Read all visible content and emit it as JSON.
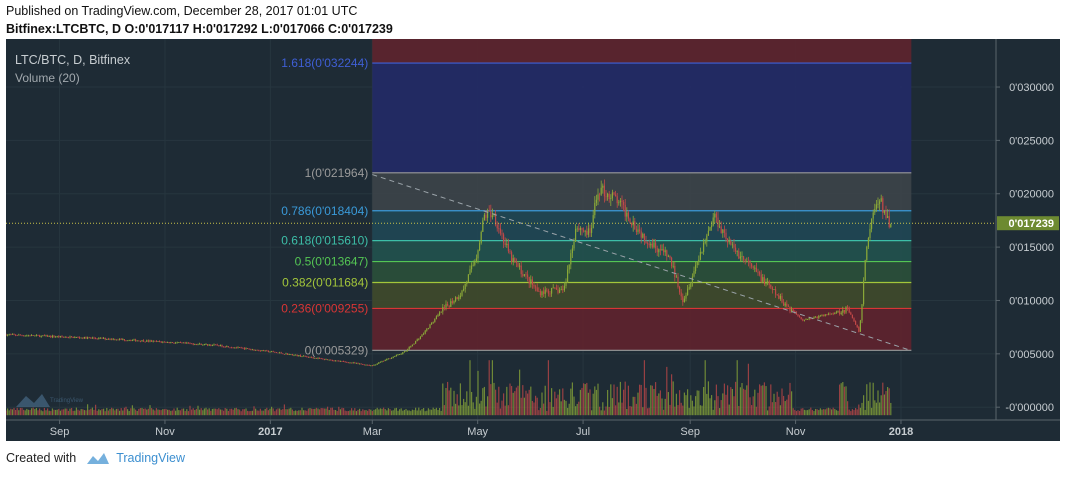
{
  "header": {
    "published": "Published on TradingView.com, December 28, 2017 01:01 UTC",
    "ohlc": "Bitfinex:LTCBTC, D  O:0'017117 H:0'017292 L:0'017066 C:0'017239"
  },
  "footer": {
    "created_with": "Created with",
    "brand": "TradingView"
  },
  "colors": {
    "background": "#1e2b35",
    "candle_up": "#8aa838",
    "candle_down": "#c24848",
    "last_price_badge": "#6d8a31",
    "fib_zone_top": "#232a66",
    "fib_zone_bottom": "#5e232e"
  },
  "chart_data": {
    "type": "candlestick",
    "symbol_label": "LTC/BTC, D, Bitfinex",
    "volume_label": "Volume (20)",
    "x_ticks": [
      "Sep",
      "Nov",
      "2017",
      "Mar",
      "May",
      "Jul",
      "Sep",
      "Nov",
      "2018"
    ],
    "y_ticks": [
      {
        "value": 0.03,
        "label": "0'030000"
      },
      {
        "value": 0.025,
        "label": "0'025000"
      },
      {
        "value": 0.02,
        "label": "0'020000"
      },
      {
        "value": 0.015,
        "label": "0'015000"
      },
      {
        "value": 0.01,
        "label": "0'010000"
      },
      {
        "value": 0.005,
        "label": "0'005000"
      },
      {
        "value": 0.0,
        "label": "-0'000000"
      }
    ],
    "ylim": [
      -0.0012,
      0.0345
    ],
    "last_price": {
      "value": 0.017239,
      "label": "0'017239"
    },
    "fib_levels": [
      {
        "ratio": 1.618,
        "value": 0.032244,
        "label": "1.618(0'032244)",
        "color": "#3f5fd6"
      },
      {
        "ratio": 1.0,
        "value": 0.021964,
        "label": "1(0'021964)",
        "color": "#9a9a9a"
      },
      {
        "ratio": 0.786,
        "value": 0.018404,
        "label": "0.786(0'018404)",
        "color": "#3a9ad9"
      },
      {
        "ratio": 0.618,
        "value": 0.01561,
        "label": "0.618(0'015610)",
        "color": "#3dbfa8"
      },
      {
        "ratio": 0.5,
        "value": 0.013647,
        "label": "0.5(0'013647)",
        "color": "#54c654"
      },
      {
        "ratio": 0.382,
        "value": 0.011684,
        "label": "0.382(0'011684)",
        "color": "#a3c63a"
      },
      {
        "ratio": 0.236,
        "value": 0.009255,
        "label": "0.236(0'009255)",
        "color": "#d93535"
      },
      {
        "ratio": 0.0,
        "value": 0.005329,
        "label": "0(0'005329)",
        "color": "#9a9a9a"
      }
    ],
    "trend_line": {
      "from": {
        "date": "2017-03-01",
        "value": 0.0218
      },
      "to": {
        "date": "2018-01-07",
        "value": 0.0053
      }
    },
    "price_path": [
      [
        "2016-08-01",
        0.0068
      ],
      [
        "2016-09-01",
        0.0066
      ],
      [
        "2016-10-01",
        0.0064
      ],
      [
        "2016-11-01",
        0.0061
      ],
      [
        "2016-12-01",
        0.0058
      ],
      [
        "2017-01-01",
        0.0052
      ],
      [
        "2017-02-01",
        0.0045
      ],
      [
        "2017-03-01",
        0.0039
      ],
      [
        "2017-03-20",
        0.0052
      ],
      [
        "2017-03-30",
        0.0068
      ],
      [
        "2017-04-10",
        0.009
      ],
      [
        "2017-04-22",
        0.0108
      ],
      [
        "2017-04-30",
        0.014
      ],
      [
        "2017-05-05",
        0.018
      ],
      [
        "2017-05-10",
        0.0182
      ],
      [
        "2017-05-20",
        0.014
      ],
      [
        "2017-06-05",
        0.0108
      ],
      [
        "2017-06-20",
        0.011
      ],
      [
        "2017-06-27",
        0.017
      ],
      [
        "2017-07-05",
        0.0162
      ],
      [
        "2017-07-10",
        0.0205
      ],
      [
        "2017-07-20",
        0.0195
      ],
      [
        "2017-08-05",
        0.016
      ],
      [
        "2017-08-20",
        0.014
      ],
      [
        "2017-08-28",
        0.01
      ],
      [
        "2017-09-08",
        0.015
      ],
      [
        "2017-09-15",
        0.018
      ],
      [
        "2017-09-25",
        0.015
      ],
      [
        "2017-10-10",
        0.0125
      ],
      [
        "2017-10-25",
        0.0098
      ],
      [
        "2017-11-05",
        0.0082
      ],
      [
        "2017-11-15",
        0.0085
      ],
      [
        "2017-12-01",
        0.0092
      ],
      [
        "2017-12-08",
        0.007
      ],
      [
        "2017-12-12",
        0.015
      ],
      [
        "2017-12-16",
        0.0185
      ],
      [
        "2017-12-20",
        0.0193
      ],
      [
        "2017-12-24",
        0.0175
      ],
      [
        "2017-12-27",
        0.0172
      ]
    ]
  }
}
